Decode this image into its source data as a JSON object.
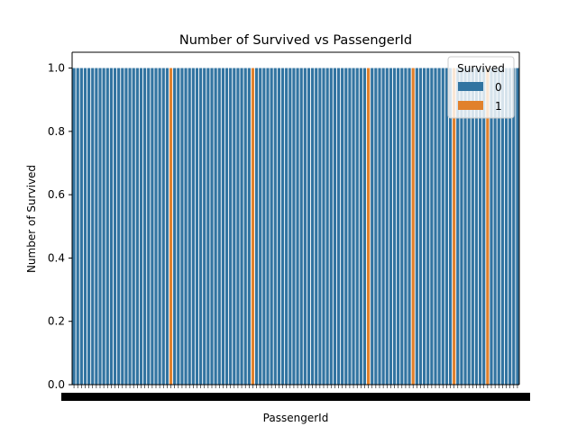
{
  "chart_data": {
    "type": "bar",
    "title": "Number of Survived vs PassengerId",
    "xlabel": "PassengerId",
    "ylabel": "Number of Survived",
    "ylim": [
      0,
      1.05
    ],
    "y_ticks": [
      "0.0",
      "0.2",
      "0.4",
      "0.6",
      "0.8",
      "1.0"
    ],
    "grid": false,
    "legend_position": "top-right",
    "legend_title": "Survived",
    "series": [
      {
        "name": "0",
        "color": "#3274a1"
      },
      {
        "name": "1",
        "color": "#e1812c"
      }
    ],
    "x_tick_labels_note_count": 120,
    "bar_value": 1.0,
    "survived_flags": [
      0,
      0,
      0,
      0,
      0,
      0,
      0,
      0,
      0,
      0,
      0,
      0,
      0,
      0,
      0,
      0,
      0,
      0,
      0,
      0,
      0,
      0,
      0,
      0,
      0,
      0,
      1,
      0,
      0,
      0,
      0,
      0,
      0,
      0,
      0,
      0,
      0,
      0,
      0,
      0,
      0,
      0,
      0,
      0,
      0,
      0,
      0,
      0,
      1,
      0,
      0,
      0,
      0,
      0,
      0,
      0,
      0,
      0,
      0,
      0,
      0,
      0,
      0,
      0,
      0,
      0,
      0,
      0,
      0,
      0,
      0,
      0,
      0,
      0,
      0,
      0,
      0,
      0,
      0,
      1,
      0,
      0,
      0,
      0,
      0,
      0,
      0,
      0,
      0,
      0,
      0,
      1,
      0,
      0,
      0,
      0,
      0,
      0,
      0,
      0,
      0,
      0,
      1,
      0,
      0,
      0,
      0,
      0,
      0,
      0,
      0,
      1,
      0,
      0,
      0,
      0,
      0,
      0,
      0,
      0
    ]
  }
}
